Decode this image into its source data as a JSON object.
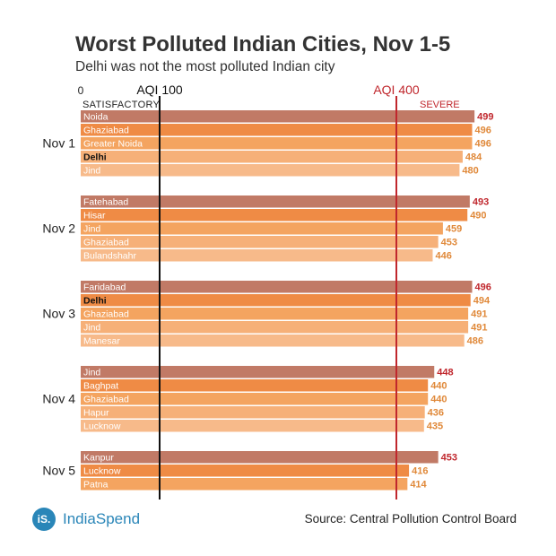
{
  "title": "Worst Polluted Indian Cities, Nov 1-5",
  "subtitle": "Delhi was not the most polluted Indian city",
  "brand": {
    "logo_text": "iS.",
    "name": "IndiaSpend"
  },
  "source": "Source: Central Pollution Control Board",
  "chart_data": {
    "type": "bar",
    "orientation": "horizontal",
    "xlim": [
      0,
      500
    ],
    "axis_zero_label": "0",
    "reference_lines": [
      {
        "value": 100,
        "label": "AQI 100",
        "category_label": "SATISFACTORY",
        "color": "#111111"
      },
      {
        "value": 400,
        "label": "AQI 400",
        "category_label": "SEVERE",
        "color": "#c0272d"
      }
    ],
    "colors": {
      "top_bar": "#c17a66",
      "bar_2": "#ef8b45",
      "bar_3": "#f4a460",
      "bar_4": "#f6b078",
      "bar_5": "#f7ba8a",
      "value_label": "#e0893a",
      "value_label_top": "#c0272d"
    },
    "groups": [
      {
        "label": "Nov 1",
        "bars": [
          {
            "city": "Noida",
            "value": 499
          },
          {
            "city": "Ghaziabad",
            "value": 496
          },
          {
            "city": "Greater Noida",
            "value": 496
          },
          {
            "city": "Delhi",
            "value": 484,
            "highlight": true
          },
          {
            "city": "Jind",
            "value": 480
          }
        ]
      },
      {
        "label": "Nov 2",
        "bars": [
          {
            "city": "Fatehabad",
            "value": 493
          },
          {
            "city": "Hisar",
            "value": 490
          },
          {
            "city": "Jind",
            "value": 459
          },
          {
            "city": "Ghaziabad",
            "value": 453
          },
          {
            "city": "Bulandshahr",
            "value": 446
          }
        ]
      },
      {
        "label": "Nov 3",
        "bars": [
          {
            "city": "Faridabad",
            "value": 496
          },
          {
            "city": "Delhi",
            "value": 494,
            "highlight": true
          },
          {
            "city": "Ghaziabad",
            "value": 491
          },
          {
            "city": "Jind",
            "value": 491
          },
          {
            "city": "Manesar",
            "value": 486
          }
        ]
      },
      {
        "label": "Nov 4",
        "bars": [
          {
            "city": "Jind",
            "value": 448
          },
          {
            "city": "Baghpat",
            "value": 440
          },
          {
            "city": "Ghaziabad",
            "value": 440
          },
          {
            "city": "Hapur",
            "value": 436
          },
          {
            "city": "Lucknow",
            "value": 435
          }
        ]
      },
      {
        "label": "Nov 5",
        "bars": [
          {
            "city": "Kanpur",
            "value": 453
          },
          {
            "city": "Lucknow",
            "value": 416
          },
          {
            "city": "Patna",
            "value": 414
          }
        ]
      }
    ]
  }
}
